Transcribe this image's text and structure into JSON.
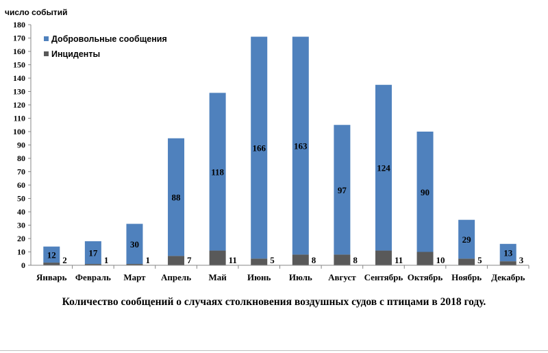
{
  "chart_data": {
    "type": "bar",
    "stacked": true,
    "ylabel": "число событий",
    "xlabel": "",
    "ylim": [
      0,
      180
    ],
    "ytick_step": 10,
    "categories": [
      "Январь",
      "Февраль",
      "Март",
      "Апрель",
      "Май",
      "Июнь",
      "Июль",
      "Август",
      "Сентябрь",
      "Октябрь",
      "Ноябрь",
      "Декабрь"
    ],
    "series": [
      {
        "name": "Инциденты",
        "color": "#595959",
        "values": [
          2,
          1,
          1,
          7,
          11,
          5,
          8,
          8,
          11,
          10,
          5,
          3
        ]
      },
      {
        "name": "Добровольные сообщения",
        "color": "#4f81bd",
        "values": [
          12,
          17,
          30,
          88,
          118,
          166,
          163,
          97,
          124,
          90,
          29,
          13
        ]
      }
    ],
    "legend": "top-left",
    "grid": false,
    "caption": "Количество сообщений о случаях столкновения воздушных судов с птицами в 2018 году."
  }
}
